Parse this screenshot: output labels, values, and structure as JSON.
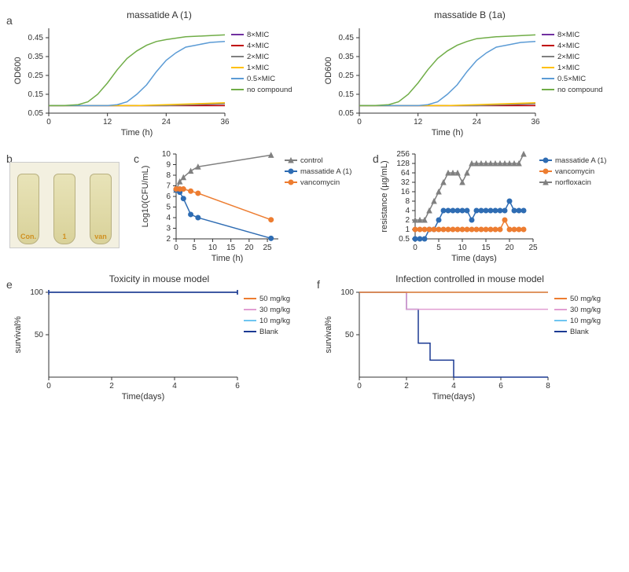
{
  "panelA": {
    "left": {
      "title": "massatide A (1)",
      "type": "line",
      "xlabel": "Time (h)",
      "ylabel": "OD600",
      "xlim": [
        0,
        36
      ],
      "xticks": [
        0,
        12,
        24,
        36
      ],
      "ylim": [
        0.05,
        0.5
      ],
      "yticks": [
        0.05,
        0.15,
        0.25,
        0.35,
        0.45
      ],
      "series": [
        {
          "label": "8×MIC",
          "color": "#7030A0",
          "data": [
            [
              0,
              0.09
            ],
            [
              6,
              0.09
            ],
            [
              12,
              0.09
            ],
            [
              18,
              0.09
            ],
            [
              24,
              0.09
            ],
            [
              30,
              0.09
            ],
            [
              36,
              0.09
            ]
          ]
        },
        {
          "label": "4×MIC",
          "color": "#C00000",
          "data": [
            [
              0,
              0.09
            ],
            [
              6,
              0.09
            ],
            [
              12,
              0.09
            ],
            [
              18,
              0.09
            ],
            [
              24,
              0.09
            ],
            [
              30,
              0.09
            ],
            [
              36,
              0.09
            ]
          ]
        },
        {
          "label": "2×MIC",
          "color": "#808080",
          "data": [
            [
              0,
              0.09
            ],
            [
              6,
              0.09
            ],
            [
              12,
              0.09
            ],
            [
              18,
              0.09
            ],
            [
              24,
              0.09
            ],
            [
              30,
              0.095
            ],
            [
              36,
              0.1
            ]
          ]
        },
        {
          "label": "1×MIC",
          "color": "#FFC000",
          "data": [
            [
              0,
              0.09
            ],
            [
              6,
              0.09
            ],
            [
              12,
              0.09
            ],
            [
              18,
              0.09
            ],
            [
              24,
              0.095
            ],
            [
              30,
              0.1
            ],
            [
              36,
              0.105
            ]
          ]
        },
        {
          "label": "0.5×MIC",
          "color": "#5B9BD5",
          "data": [
            [
              0,
              0.09
            ],
            [
              4,
              0.09
            ],
            [
              8,
              0.09
            ],
            [
              12,
              0.09
            ],
            [
              14,
              0.095
            ],
            [
              16,
              0.11
            ],
            [
              18,
              0.15
            ],
            [
              20,
              0.2
            ],
            [
              22,
              0.27
            ],
            [
              24,
              0.33
            ],
            [
              26,
              0.37
            ],
            [
              28,
              0.4
            ],
            [
              30,
              0.41
            ],
            [
              33,
              0.425
            ],
            [
              36,
              0.43
            ]
          ]
        },
        {
          "label": "no compound",
          "color": "#70AD47",
          "data": [
            [
              0,
              0.09
            ],
            [
              3,
              0.09
            ],
            [
              6,
              0.095
            ],
            [
              8,
              0.11
            ],
            [
              10,
              0.15
            ],
            [
              12,
              0.21
            ],
            [
              14,
              0.28
            ],
            [
              16,
              0.34
            ],
            [
              18,
              0.38
            ],
            [
              20,
              0.41
            ],
            [
              22,
              0.43
            ],
            [
              24,
              0.44
            ],
            [
              28,
              0.455
            ],
            [
              32,
              0.46
            ],
            [
              36,
              0.465
            ]
          ]
        }
      ]
    },
    "right": {
      "title": "massatide B (1a)",
      "type": "line",
      "xlabel": "Time (h)",
      "ylabel": "OD600",
      "xlim": [
        0,
        36
      ],
      "xticks": [
        0,
        12,
        24,
        36
      ],
      "ylim": [
        0.05,
        0.5
      ],
      "yticks": [
        0.05,
        0.15,
        0.25,
        0.35,
        0.45
      ],
      "series": [
        {
          "label": "8×MIC",
          "color": "#7030A0",
          "data": [
            [
              0,
              0.09
            ],
            [
              6,
              0.09
            ],
            [
              12,
              0.09
            ],
            [
              18,
              0.09
            ],
            [
              24,
              0.09
            ],
            [
              30,
              0.09
            ],
            [
              36,
              0.09
            ]
          ]
        },
        {
          "label": "4×MIC",
          "color": "#C00000",
          "data": [
            [
              0,
              0.09
            ],
            [
              6,
              0.09
            ],
            [
              12,
              0.09
            ],
            [
              18,
              0.09
            ],
            [
              24,
              0.09
            ],
            [
              30,
              0.09
            ],
            [
              36,
              0.09
            ]
          ]
        },
        {
          "label": "2×MIC",
          "color": "#808080",
          "data": [
            [
              0,
              0.09
            ],
            [
              6,
              0.09
            ],
            [
              12,
              0.09
            ],
            [
              18,
              0.09
            ],
            [
              24,
              0.09
            ],
            [
              30,
              0.095
            ],
            [
              36,
              0.1
            ]
          ]
        },
        {
          "label": "1×MIC",
          "color": "#FFC000",
          "data": [
            [
              0,
              0.09
            ],
            [
              6,
              0.09
            ],
            [
              12,
              0.09
            ],
            [
              18,
              0.09
            ],
            [
              24,
              0.095
            ],
            [
              30,
              0.1
            ],
            [
              36,
              0.105
            ]
          ]
        },
        {
          "label": "0.5×MIC",
          "color": "#5B9BD5",
          "data": [
            [
              0,
              0.09
            ],
            [
              4,
              0.09
            ],
            [
              8,
              0.09
            ],
            [
              12,
              0.09
            ],
            [
              14,
              0.095
            ],
            [
              16,
              0.11
            ],
            [
              18,
              0.15
            ],
            [
              20,
              0.2
            ],
            [
              22,
              0.27
            ],
            [
              24,
              0.33
            ],
            [
              26,
              0.37
            ],
            [
              28,
              0.4
            ],
            [
              30,
              0.41
            ],
            [
              33,
              0.425
            ],
            [
              36,
              0.43
            ]
          ]
        },
        {
          "label": "no compound",
          "color": "#70AD47",
          "data": [
            [
              0,
              0.09
            ],
            [
              3,
              0.09
            ],
            [
              6,
              0.095
            ],
            [
              8,
              0.11
            ],
            [
              10,
              0.15
            ],
            [
              12,
              0.21
            ],
            [
              14,
              0.28
            ],
            [
              16,
              0.34
            ],
            [
              18,
              0.38
            ],
            [
              20,
              0.41
            ],
            [
              22,
              0.43
            ],
            [
              24,
              0.445
            ],
            [
              28,
              0.455
            ],
            [
              32,
              0.46
            ],
            [
              36,
              0.465
            ]
          ]
        }
      ]
    }
  },
  "panelB": {
    "tubes": [
      "Con.",
      "1",
      "van"
    ]
  },
  "panelC": {
    "type": "line-markers",
    "xlabel": "Time (h)",
    "ylabel": "Log10(CFU/mL)",
    "xlim": [
      0,
      28
    ],
    "xticks": [
      0,
      5,
      10,
      15,
      20,
      25
    ],
    "ylim": [
      2,
      10
    ],
    "yticks": [
      2,
      3,
      4,
      5,
      6,
      7,
      8,
      9,
      10
    ],
    "series": [
      {
        "label": "control",
        "color": "#808080",
        "marker": "triangle",
        "data": [
          [
            0,
            6.6
          ],
          [
            1,
            7.4
          ],
          [
            2,
            7.8
          ],
          [
            4,
            8.4
          ],
          [
            6,
            8.8
          ],
          [
            26,
            9.9
          ]
        ]
      },
      {
        "label": "massatide A (1)",
        "color": "#2E6CB3",
        "marker": "circle",
        "data": [
          [
            0,
            6.6
          ],
          [
            1,
            6.4
          ],
          [
            2,
            5.8
          ],
          [
            4,
            4.3
          ],
          [
            6,
            4.0
          ],
          [
            26,
            2.05
          ]
        ]
      },
      {
        "label": "vancomycin",
        "color": "#ED7D31",
        "marker": "circle",
        "data": [
          [
            0,
            6.7
          ],
          [
            1,
            6.7
          ],
          [
            2,
            6.7
          ],
          [
            4,
            6.5
          ],
          [
            6,
            6.3
          ],
          [
            26,
            3.8
          ]
        ]
      }
    ]
  },
  "panelD": {
    "type": "line-markers-log2",
    "xlabel": "Time (days)",
    "ylabel": "resistance (µg/mL)",
    "xlim": [
      0,
      25
    ],
    "xticks": [
      0,
      5,
      10,
      15,
      20,
      25
    ],
    "ylim_log2": [
      -1,
      8
    ],
    "yticks": [
      0.5,
      1,
      2,
      4,
      8,
      16,
      32,
      64,
      128,
      256
    ],
    "series": [
      {
        "label": "massatide A (1)",
        "color": "#2E6CB3",
        "marker": "circle",
        "data": [
          [
            0,
            0.5
          ],
          [
            1,
            0.5
          ],
          [
            2,
            0.5
          ],
          [
            3,
            1
          ],
          [
            4,
            1
          ],
          [
            5,
            2
          ],
          [
            6,
            4
          ],
          [
            7,
            4
          ],
          [
            8,
            4
          ],
          [
            9,
            4
          ],
          [
            10,
            4
          ],
          [
            11,
            4
          ],
          [
            12,
            2
          ],
          [
            13,
            4
          ],
          [
            14,
            4
          ],
          [
            15,
            4
          ],
          [
            16,
            4
          ],
          [
            17,
            4
          ],
          [
            18,
            4
          ],
          [
            19,
            4
          ],
          [
            20,
            8
          ],
          [
            21,
            4
          ],
          [
            22,
            4
          ],
          [
            23,
            4
          ]
        ]
      },
      {
        "label": "vancomycin",
        "color": "#ED7D31",
        "marker": "circle",
        "data": [
          [
            0,
            1
          ],
          [
            1,
            1
          ],
          [
            2,
            1
          ],
          [
            3,
            1
          ],
          [
            4,
            1
          ],
          [
            5,
            1
          ],
          [
            6,
            1
          ],
          [
            7,
            1
          ],
          [
            8,
            1
          ],
          [
            9,
            1
          ],
          [
            10,
            1
          ],
          [
            11,
            1
          ],
          [
            12,
            1
          ],
          [
            13,
            1
          ],
          [
            14,
            1
          ],
          [
            15,
            1
          ],
          [
            16,
            1
          ],
          [
            17,
            1
          ],
          [
            18,
            1
          ],
          [
            19,
            2
          ],
          [
            20,
            1
          ],
          [
            21,
            1
          ],
          [
            22,
            1
          ],
          [
            23,
            1
          ]
        ]
      },
      {
        "label": "norfloxacin",
        "color": "#808080",
        "marker": "triangle",
        "data": [
          [
            0,
            2
          ],
          [
            1,
            2
          ],
          [
            2,
            2
          ],
          [
            3,
            4
          ],
          [
            4,
            8
          ],
          [
            5,
            16
          ],
          [
            6,
            32
          ],
          [
            7,
            64
          ],
          [
            8,
            64
          ],
          [
            9,
            64
          ],
          [
            10,
            32
          ],
          [
            11,
            64
          ],
          [
            12,
            128
          ],
          [
            13,
            128
          ],
          [
            14,
            128
          ],
          [
            15,
            128
          ],
          [
            16,
            128
          ],
          [
            17,
            128
          ],
          [
            18,
            128
          ],
          [
            19,
            128
          ],
          [
            20,
            128
          ],
          [
            21,
            128
          ],
          [
            22,
            128
          ],
          [
            23,
            256
          ]
        ]
      }
    ]
  },
  "panelE": {
    "title": "Toxicity in mouse model",
    "type": "step",
    "xlabel": "Time(days)",
    "ylabel": "survival%",
    "xlim": [
      0,
      6
    ],
    "xticks": [
      0,
      2,
      4,
      6
    ],
    "ylim": [
      0,
      100
    ],
    "yticks": [
      50,
      100
    ],
    "series": [
      {
        "label": "50 mg/kg",
        "color": "#ED7D31",
        "data": [
          [
            0,
            100
          ],
          [
            6,
            100
          ]
        ]
      },
      {
        "label": "30 mg/kg",
        "color": "#E19ED2",
        "data": [
          [
            0,
            100
          ],
          [
            6,
            100
          ]
        ]
      },
      {
        "label": "10 mg/kg",
        "color": "#6EC5F0",
        "data": [
          [
            0,
            100
          ],
          [
            6,
            100
          ]
        ]
      },
      {
        "label": "Blank",
        "color": "#1B3A93",
        "data": [
          [
            0,
            100
          ],
          [
            6,
            100
          ]
        ]
      }
    ]
  },
  "panelF": {
    "title": "Infection controlled in mouse model",
    "type": "step",
    "xlabel": "Time(days)",
    "ylabel": "survival%",
    "xlim": [
      0,
      8
    ],
    "xticks": [
      0,
      2,
      4,
      6,
      8
    ],
    "ylim": [
      0,
      100
    ],
    "yticks": [
      50,
      100
    ],
    "series": [
      {
        "label": "Blank",
        "color": "#1B3A93",
        "data": [
          [
            0,
            100
          ],
          [
            2,
            100
          ],
          [
            2,
            80
          ],
          [
            2.5,
            80
          ],
          [
            2.5,
            40
          ],
          [
            3,
            40
          ],
          [
            3,
            20
          ],
          [
            4,
            20
          ],
          [
            4,
            0
          ],
          [
            8,
            0
          ]
        ]
      },
      {
        "label": "30 mg/kg",
        "color": "#E19ED2",
        "data": [
          [
            0,
            100
          ],
          [
            2,
            100
          ],
          [
            2,
            80
          ],
          [
            8,
            80
          ]
        ]
      },
      {
        "label": "10 mg/kg",
        "color": "#6EC5F0",
        "data": [
          [
            0,
            100
          ],
          [
            8,
            100
          ]
        ]
      },
      {
        "label": "50 mg/kg",
        "color": "#ED7D31",
        "data": [
          [
            0,
            100
          ],
          [
            8,
            100
          ]
        ]
      }
    ],
    "legend_order": [
      "50 mg/kg",
      "30 mg/kg",
      "10 mg/kg",
      "Blank"
    ]
  },
  "style": {
    "label_fontsize": 10,
    "title_fontsize": 12,
    "marker_radius": 3,
    "line_width": 1.5,
    "axis_color": "#333333"
  }
}
